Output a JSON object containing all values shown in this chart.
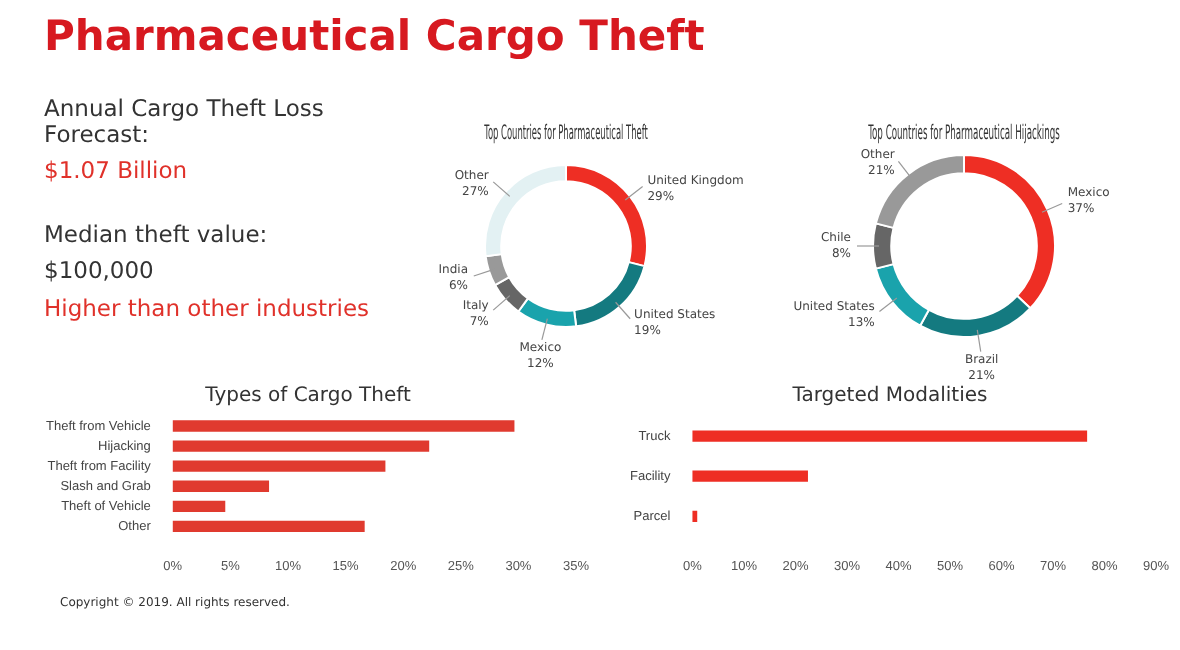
{
  "chart_data": [
    {
      "type": "other",
      "title": "Pharmaceutical Cargo Theft",
      "annotations": [
        "Annual Cargo Theft Loss Forecast:",
        "$1.07 Billion",
        "Median theft value:",
        "$100,000",
        "Higher than other industries",
        "Copyright © 2019. All rights reserved."
      ]
    },
    {
      "type": "donut",
      "title": "Top Countries for Pharmaceutical Theft",
      "categories": [
        "United Kingdom",
        "United States",
        "Mexico",
        "Italy",
        "India",
        "Other"
      ],
      "values": [
        29,
        19,
        12,
        7,
        6,
        27
      ],
      "value_labels": [
        "29%",
        "19%",
        "12%",
        "7%",
        "6%",
        "27%"
      ],
      "colors": [
        "#ee2e24",
        "#147a80",
        "#1aa3ac",
        "#666666",
        "#999999",
        "#e3f1f3"
      ]
    },
    {
      "type": "donut",
      "title": "Top Countries for Pharmaceutical Hijackings",
      "categories": [
        "Mexico",
        "Brazil",
        "United States",
        "Chile",
        "Other"
      ],
      "values": [
        37,
        21,
        13,
        8,
        21
      ],
      "value_labels": [
        "37%",
        "21%",
        "13%",
        "8%",
        "21%"
      ],
      "colors": [
        "#ee2e24",
        "#147a80",
        "#1aa3ac",
        "#666666",
        "#999999"
      ]
    },
    {
      "type": "bar",
      "orientation": "horizontal",
      "title": "Types of Cargo Theft",
      "categories": [
        "Theft from Vehicle",
        "Hijacking",
        "Theft from Facility",
        "Slash and Grab",
        "Theft of Vehicle",
        "Other"
      ],
      "values": [
        29.6,
        22.2,
        18.4,
        8.3,
        4.5,
        16.6
      ],
      "color": "#e03a2f",
      "xlim": [
        0,
        35
      ],
      "xticks": [
        {
          "value": 0,
          "label": "0%"
        },
        {
          "value": 5,
          "label": "5%"
        },
        {
          "value": 10,
          "label": "10%"
        },
        {
          "value": 15,
          "label": "15%"
        },
        {
          "value": 20,
          "label": "20%"
        },
        {
          "value": 25,
          "label": "25%"
        },
        {
          "value": 30,
          "label": "30%"
        },
        {
          "value": 35,
          "label": "35%"
        }
      ]
    },
    {
      "type": "bar",
      "orientation": "horizontal",
      "title": "Targeted Modalities",
      "categories": [
        "Truck",
        "Facility",
        "Parcel"
      ],
      "values": [
        76.5,
        22.3,
        0.8
      ],
      "color": "#ee2e24",
      "xlim": [
        0,
        90
      ],
      "xticks": [
        {
          "value": 0,
          "label": "0%"
        },
        {
          "value": 10,
          "label": "10%"
        },
        {
          "value": 20,
          "label": "20%"
        },
        {
          "value": 30,
          "label": "30%"
        },
        {
          "value": 40,
          "label": "40%"
        },
        {
          "value": 50,
          "label": "50%"
        },
        {
          "value": 60,
          "label": "60%"
        },
        {
          "value": 70,
          "label": "70%"
        },
        {
          "value": 80,
          "label": "80%"
        },
        {
          "value": 90,
          "label": "90%"
        }
      ]
    }
  ]
}
